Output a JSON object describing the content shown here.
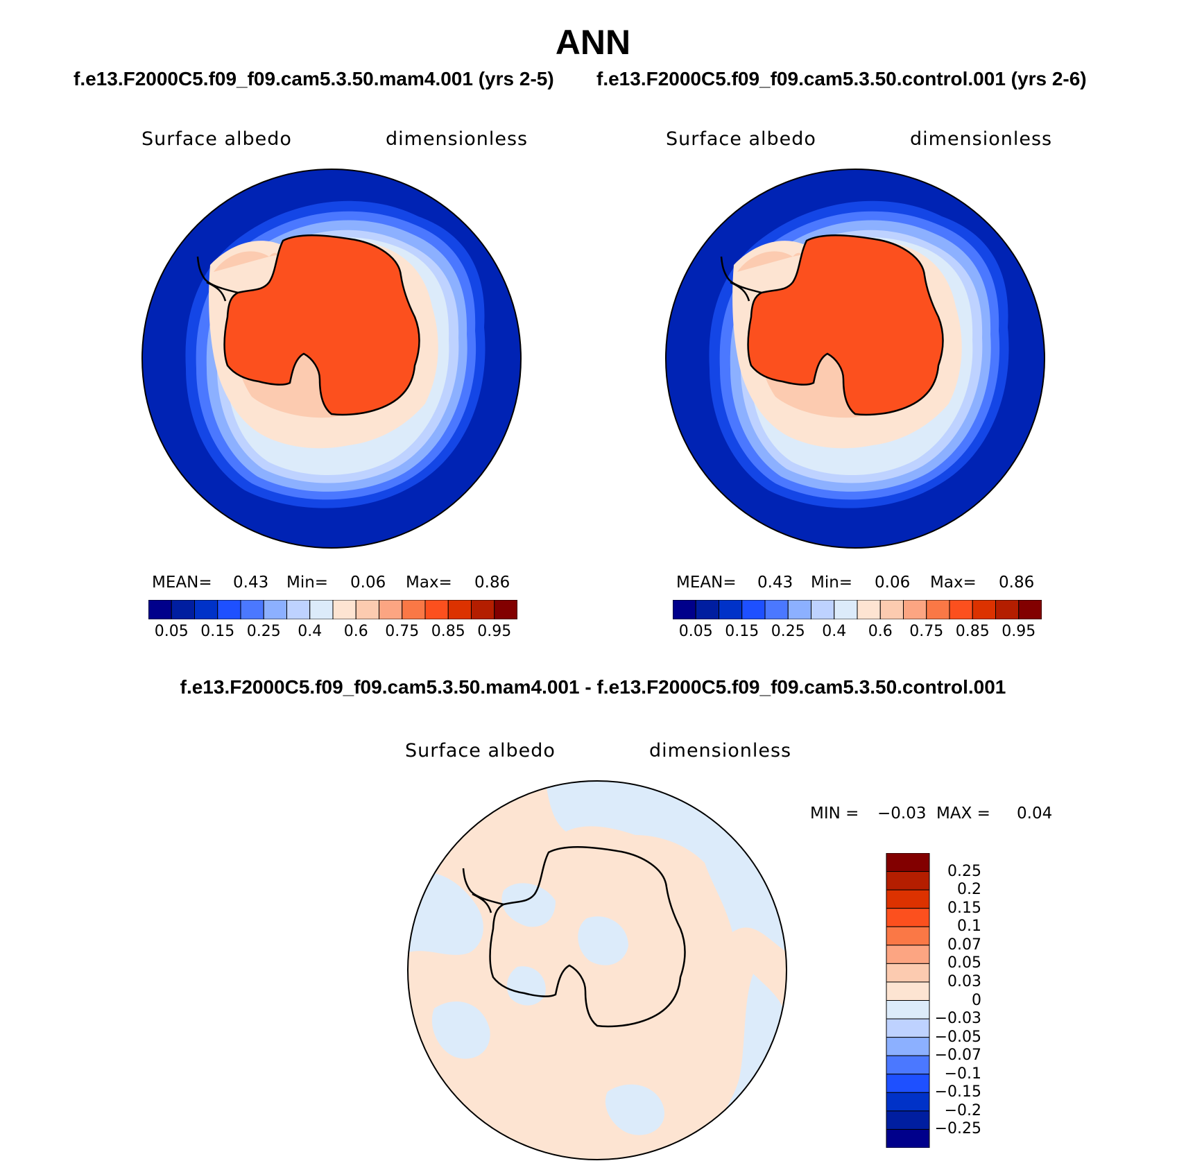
{
  "title": "ANN",
  "case_titles": {
    "left": "f.e13.F2000C5.f09_f09.cam5.3.50.mam4.001 (yrs 2-5)",
    "right": "f.e13.F2000C5.f09_f09.cam5.3.50.control.001 (yrs 2-6)"
  },
  "diff_title": "f.e13.F2000C5.f09_f09.cam5.3.50.mam4.001 - f.e13.F2000C5.f09_f09.cam5.3.50.control.001",
  "panels": [
    {
      "variable": "Surface albedo",
      "units": "dimensionless",
      "stats": {
        "mean_label": "MEAN=",
        "mean": "0.43",
        "min_label": "Min=",
        "min": "0.06",
        "max_label": "Max=",
        "max": "0.86"
      }
    },
    {
      "variable": "Surface albedo",
      "units": "dimensionless",
      "stats": {
        "mean_label": "MEAN=",
        "mean": "0.43",
        "min_label": "Min=",
        "min": "0.06",
        "max_label": "Max=",
        "max": "0.86"
      }
    }
  ],
  "diff_panel": {
    "variable": "Surface albedo",
    "units": "dimensionless",
    "minmax": {
      "min_label": "MIN =",
      "min": "−0.03",
      "max_label": "MAX =",
      "max": "0.04"
    }
  },
  "colorbar_main": {
    "orientation": "horizontal",
    "colors": [
      "#00008b",
      "#001ea0",
      "#0032c8",
      "#1e50ff",
      "#4b78ff",
      "#8cb0ff",
      "#bed2ff",
      "#dcebfa",
      "#fde4d2",
      "#fccbb0",
      "#fca582",
      "#fa7846",
      "#fc501e",
      "#dc3200",
      "#b41e00",
      "#820000"
    ],
    "tick_labels": [
      "0.05",
      "0.15",
      "0.25",
      "0.4",
      "0.6",
      "0.75",
      "0.85",
      "0.95"
    ]
  },
  "colorbar_diff": {
    "orientation": "vertical",
    "colors_top_to_bottom": [
      "#820000",
      "#b41e00",
      "#dc3200",
      "#fc501e",
      "#fa7846",
      "#fca582",
      "#fccbb0",
      "#fde4d2",
      "#dcebfa",
      "#bed2ff",
      "#8cb0ff",
      "#4b78ff",
      "#1e50ff",
      "#0032c8",
      "#001ea0",
      "#00008b"
    ],
    "tick_labels": [
      "0.25",
      "0.2",
      "0.15",
      "0.1",
      "0.07",
      "0.05",
      "0.03",
      "0",
      "−0.03",
      "−0.05",
      "−0.07",
      "−0.1",
      "−0.15",
      "−0.2",
      "−0.25"
    ]
  },
  "map_colors": {
    "ocean_far": "#0023b4",
    "ocean_ring1": "#1446e6",
    "ocean_ring2": "#4b78ff",
    "ocean_ring3": "#8cb0ff",
    "sea_ice_light": "#bed2ff",
    "sea_ice_pale": "#dcebfa",
    "shelf_pale": "#fde4d2",
    "shelf_peach": "#fccbb0",
    "ice_sheet": "#fc501e",
    "diff_positive": "#fde4d2",
    "diff_negative": "#dcebfa",
    "coast_line": "#000000"
  }
}
